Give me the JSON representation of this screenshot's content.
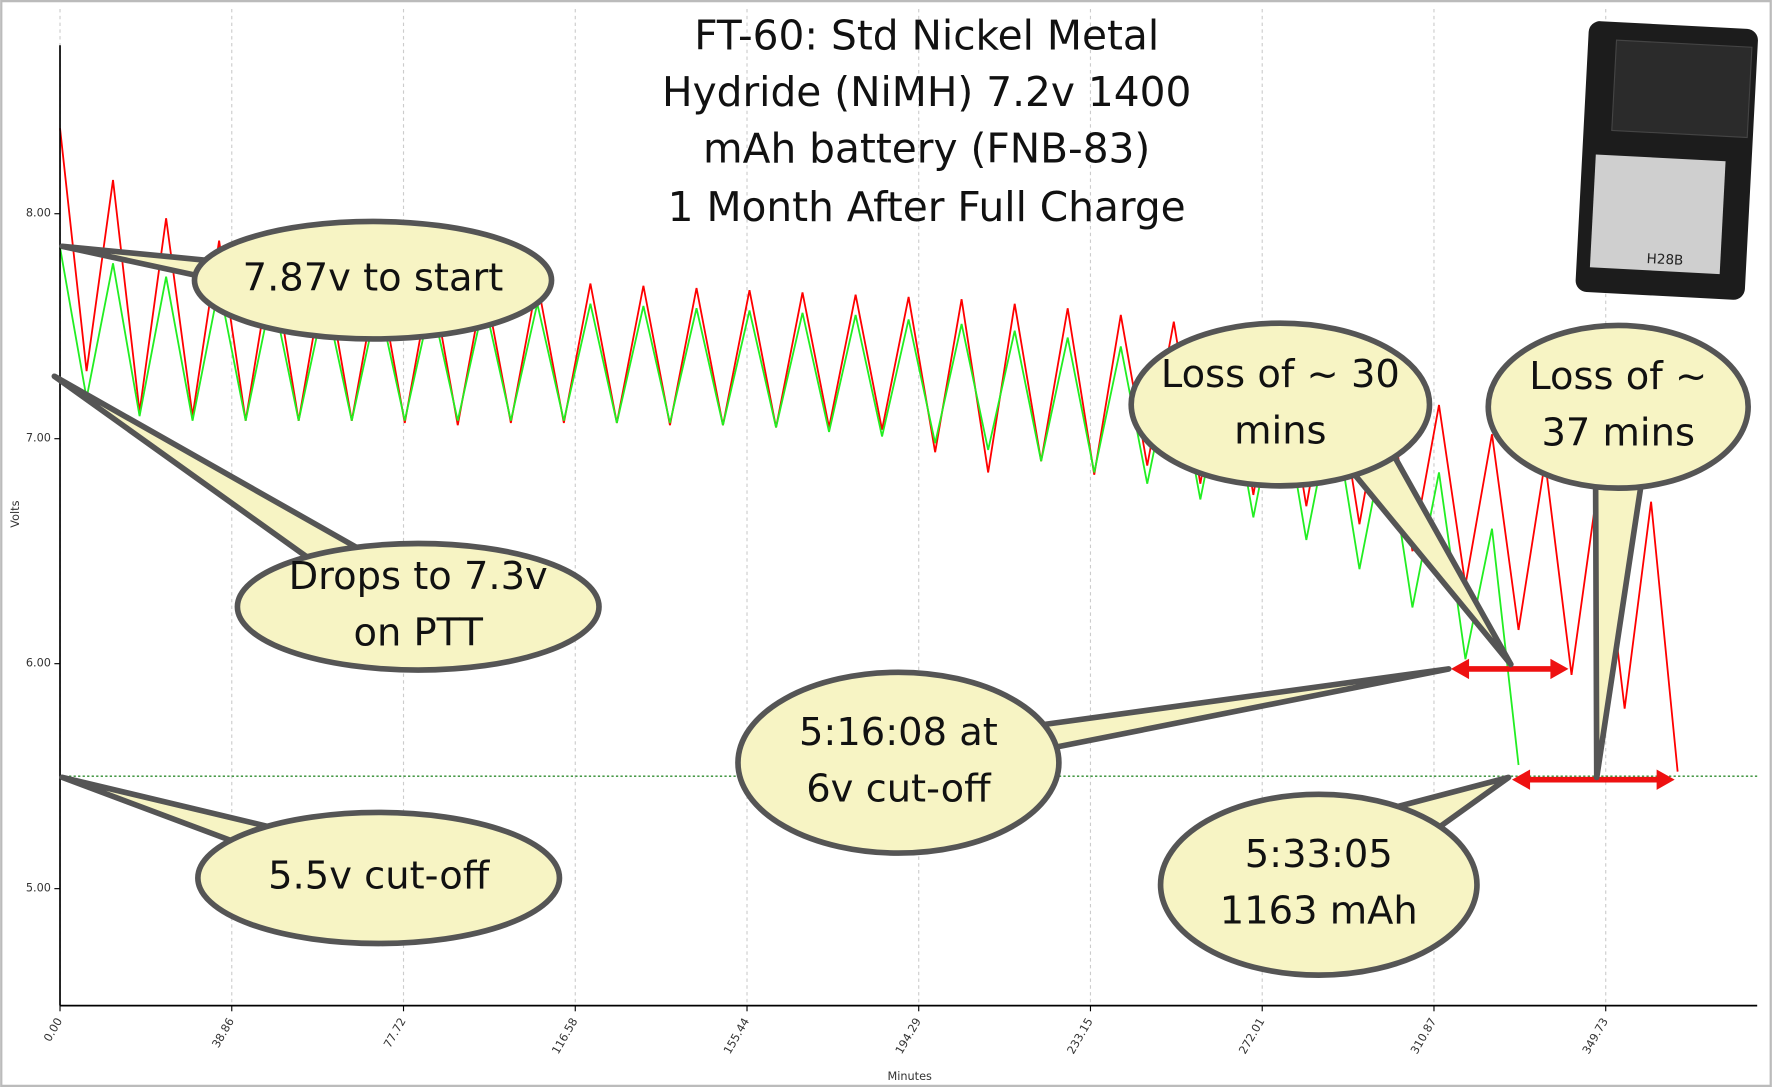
{
  "chart_data": {
    "type": "line",
    "title": [
      "FT-60: Std Nickel Metal",
      "Hydride (NiMH) 7.2v 1400",
      "mAh battery (FNB-83)"
    ],
    "subtitle": "1 Month After Full Charge",
    "subtitle_color": "#ff0000",
    "x_label": "Minutes",
    "y_label": "Volts",
    "xlim": [
      0,
      384
    ],
    "ylim": [
      4.48,
      8.95
    ],
    "xticks": [
      {
        "value": 0,
        "label": "0.00"
      },
      38.86,
      77.72,
      116.58,
      155.44,
      194.29,
      233.15,
      272.01,
      310.87,
      349.73
    ],
    "yticks": [
      {
        "value": 5,
        "label": "5.00"
      },
      {
        "value": 6,
        "label": "6.00"
      },
      {
        "value": 7,
        "label": "7.00"
      },
      {
        "value": 8,
        "label": "8.00"
      }
    ],
    "grid": true,
    "reference_line": {
      "value": 5.5,
      "color": "#2e8b2e"
    },
    "series": [
      {
        "color": "#ff0000",
        "x": [
          0,
          6,
          12,
          18,
          24,
          30,
          36,
          42,
          48,
          54,
          60,
          66,
          72,
          78,
          84,
          90,
          96,
          102,
          108,
          114,
          120,
          126,
          132,
          138,
          144,
          150,
          156,
          162,
          168,
          174,
          180,
          186,
          192,
          198,
          204,
          210,
          216,
          222,
          228,
          234,
          240,
          246,
          252,
          258,
          264,
          270,
          276,
          282,
          288,
          294,
          300,
          306,
          312,
          318,
          324,
          330,
          336,
          342,
          348,
          354,
          360,
          366
        ],
        "values": [
          8.38,
          7.3,
          8.15,
          7.12,
          7.98,
          7.1,
          7.88,
          7.08,
          7.8,
          7.08,
          7.76,
          7.08,
          7.73,
          7.07,
          7.72,
          7.06,
          7.7,
          7.07,
          7.7,
          7.07,
          7.69,
          7.07,
          7.68,
          7.06,
          7.67,
          7.06,
          7.66,
          7.05,
          7.65,
          7.05,
          7.64,
          7.04,
          7.63,
          6.94,
          7.62,
          6.85,
          7.6,
          6.9,
          7.58,
          6.84,
          7.55,
          6.88,
          7.52,
          6.8,
          7.48,
          6.75,
          7.42,
          6.7,
          7.36,
          6.62,
          7.28,
          6.5,
          7.15,
          6.35,
          7.02,
          6.15,
          6.9,
          5.95,
          6.8,
          5.8,
          6.72,
          5.52
        ]
      },
      {
        "color": "#22ee22",
        "x": [
          0,
          6,
          12,
          18,
          24,
          30,
          36,
          42,
          48,
          54,
          60,
          66,
          72,
          78,
          84,
          90,
          96,
          102,
          108,
          114,
          120,
          126,
          132,
          138,
          144,
          150,
          156,
          162,
          168,
          174,
          180,
          186,
          192,
          198,
          204,
          210,
          216,
          222,
          228,
          234,
          240,
          246,
          252,
          258,
          264,
          270,
          276,
          282,
          288,
          294,
          300,
          306,
          312,
          318,
          324,
          330
        ],
        "values": [
          7.85,
          7.18,
          7.78,
          7.1,
          7.72,
          7.08,
          7.68,
          7.08,
          7.65,
          7.08,
          7.63,
          7.08,
          7.62,
          7.08,
          7.61,
          7.08,
          7.61,
          7.08,
          7.6,
          7.08,
          7.6,
          7.07,
          7.59,
          7.07,
          7.58,
          7.06,
          7.57,
          7.05,
          7.56,
          7.03,
          7.55,
          7.01,
          7.53,
          6.98,
          7.51,
          6.95,
          7.48,
          6.9,
          7.45,
          6.85,
          7.41,
          6.8,
          7.37,
          6.73,
          7.32,
          6.65,
          7.25,
          6.55,
          7.15,
          6.42,
          7.02,
          6.25,
          6.85,
          6.02,
          6.6,
          5.55
        ]
      }
    ],
    "annotations": [
      {
        "lines": [
          "7.87v to start"
        ]
      },
      {
        "lines": [
          "Drops to 7.3v",
          "on PTT"
        ]
      },
      {
        "lines": [
          "5.5v cut-off"
        ]
      },
      {
        "lines": [
          "5:16:08 at",
          "6v cut-off"
        ]
      },
      {
        "lines": [
          "5:33:05",
          "1163 mAh"
        ]
      },
      {
        "lines": [
          "Loss of ~ 30",
          "mins"
        ]
      },
      {
        "lines": [
          "Loss of ~",
          "37 mins"
        ]
      }
    ],
    "photo_label": "H28B"
  }
}
